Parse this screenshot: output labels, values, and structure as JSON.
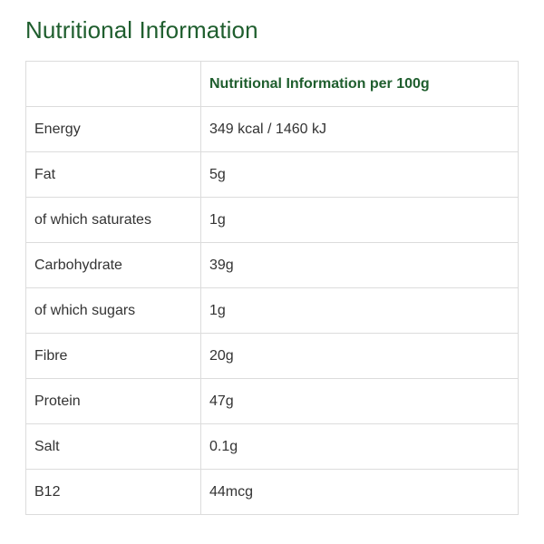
{
  "page": {
    "title": "Nutritional Information"
  },
  "table": {
    "headers": [
      "",
      "Nutritional Information per 100g"
    ],
    "rows": [
      {
        "nutrient": "Energy",
        "value": "349 kcal / 1460 kJ"
      },
      {
        "nutrient": "Fat",
        "value": "5g"
      },
      {
        "nutrient": "of which saturates",
        "value": "1g"
      },
      {
        "nutrient": "Carbohydrate",
        "value": "39g"
      },
      {
        "nutrient": "of which sugars",
        "value": "1g"
      },
      {
        "nutrient": "Fibre",
        "value": "20g"
      },
      {
        "nutrient": "Protein",
        "value": "47g"
      },
      {
        "nutrient": "Salt",
        "value": "0.1g"
      },
      {
        "nutrient": "B12",
        "value": "44mcg"
      }
    ]
  },
  "colors": {
    "heading": "#1f5e2e",
    "text": "#333333",
    "border": "#dcdcdc"
  }
}
